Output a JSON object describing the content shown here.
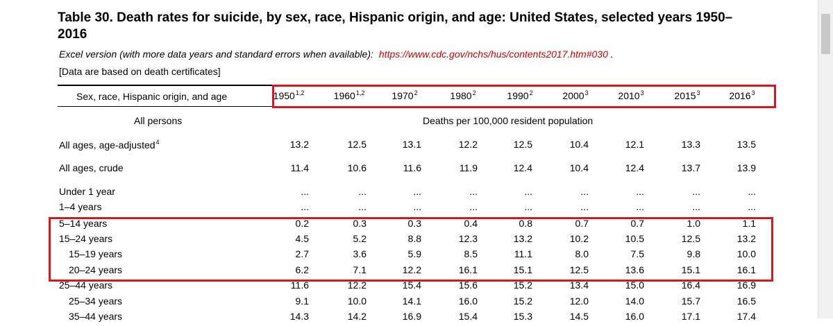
{
  "title": "Table 30. Death rates for suicide, by sex, race, Hispanic origin, and age: United States, selected years 1950–2016",
  "excel_note": "Excel version (with more data years and standard errors when available):",
  "excel_link": "https://www.cdc.gov/nchs/hus/contents2017.htm#030",
  "excel_period": ".",
  "data_note": "[Data are based on death certificates]",
  "header_label": "Sex, race, Hispanic origin, and age",
  "years": [
    {
      "year": "1950",
      "sup": "1,2"
    },
    {
      "year": "1960",
      "sup": "1,2"
    },
    {
      "year": "1970",
      "sup": "2"
    },
    {
      "year": "1980",
      "sup": "2"
    },
    {
      "year": "1990",
      "sup": "2"
    },
    {
      "year": "2000",
      "sup": "3"
    },
    {
      "year": "2010",
      "sup": "3"
    },
    {
      "year": "2015",
      "sup": "3"
    },
    {
      "year": "2016",
      "sup": "3"
    }
  ],
  "section_label": "All persons",
  "units_label": "Deaths per 100,000 resident population",
  "rows": [
    {
      "label": "All ages, age-adjusted",
      "sup": "4",
      "indent": false,
      "values": [
        "13.2",
        "12.5",
        "13.1",
        "12.2",
        "12.5",
        "10.4",
        "12.1",
        "13.3",
        "13.5"
      ]
    },
    {
      "label": "All ages, crude",
      "sup": "",
      "indent": false,
      "values": [
        "11.4",
        "10.6",
        "11.6",
        "11.9",
        "12.4",
        "10.4",
        "12.4",
        "13.7",
        "13.9"
      ]
    },
    {
      "label": "Under 1 year",
      "sup": "",
      "indent": false,
      "values": [
        "...",
        "...",
        "...",
        "...",
        "...",
        "...",
        "...",
        "...",
        "..."
      ]
    },
    {
      "label": "1–4 years",
      "sup": "",
      "indent": false,
      "values": [
        "...",
        "...",
        "...",
        "...",
        "...",
        "...",
        "...",
        "...",
        "..."
      ]
    },
    {
      "label": "5–14 years",
      "sup": "",
      "indent": false,
      "values": [
        "0.2",
        "0.3",
        "0.3",
        "0.4",
        "0.8",
        "0.7",
        "0.7",
        "1.0",
        "1.1"
      ]
    },
    {
      "label": "15–24 years",
      "sup": "",
      "indent": false,
      "values": [
        "4.5",
        "5.2",
        "8.8",
        "12.3",
        "13.2",
        "10.2",
        "10.5",
        "12.5",
        "13.2"
      ]
    },
    {
      "label": "15–19 years",
      "sup": "",
      "indent": true,
      "values": [
        "2.7",
        "3.6",
        "5.9",
        "8.5",
        "11.1",
        "8.0",
        "7.5",
        "9.8",
        "10.0"
      ]
    },
    {
      "label": "20–24 years",
      "sup": "",
      "indent": true,
      "values": [
        "6.2",
        "7.1",
        "12.2",
        "16.1",
        "15.1",
        "12.5",
        "13.6",
        "15.1",
        "16.1"
      ]
    },
    {
      "label": "25–44 years",
      "sup": "",
      "indent": false,
      "values": [
        "11.6",
        "12.2",
        "15.4",
        "15.6",
        "15.2",
        "13.4",
        "15.0",
        "16.4",
        "16.9"
      ]
    },
    {
      "label": "25–34 years",
      "sup": "",
      "indent": true,
      "values": [
        "9.1",
        "10.0",
        "14.1",
        "16.0",
        "15.2",
        "12.0",
        "14.0",
        "15.7",
        "16.5"
      ]
    },
    {
      "label": "35–44 years",
      "sup": "",
      "indent": true,
      "values": [
        "14.3",
        "14.2",
        "16.9",
        "15.4",
        "15.3",
        "14.5",
        "16.0",
        "17.1",
        "17.4"
      ]
    }
  ],
  "colors": {
    "link": "#c00000",
    "highlight": "#d4181e"
  }
}
